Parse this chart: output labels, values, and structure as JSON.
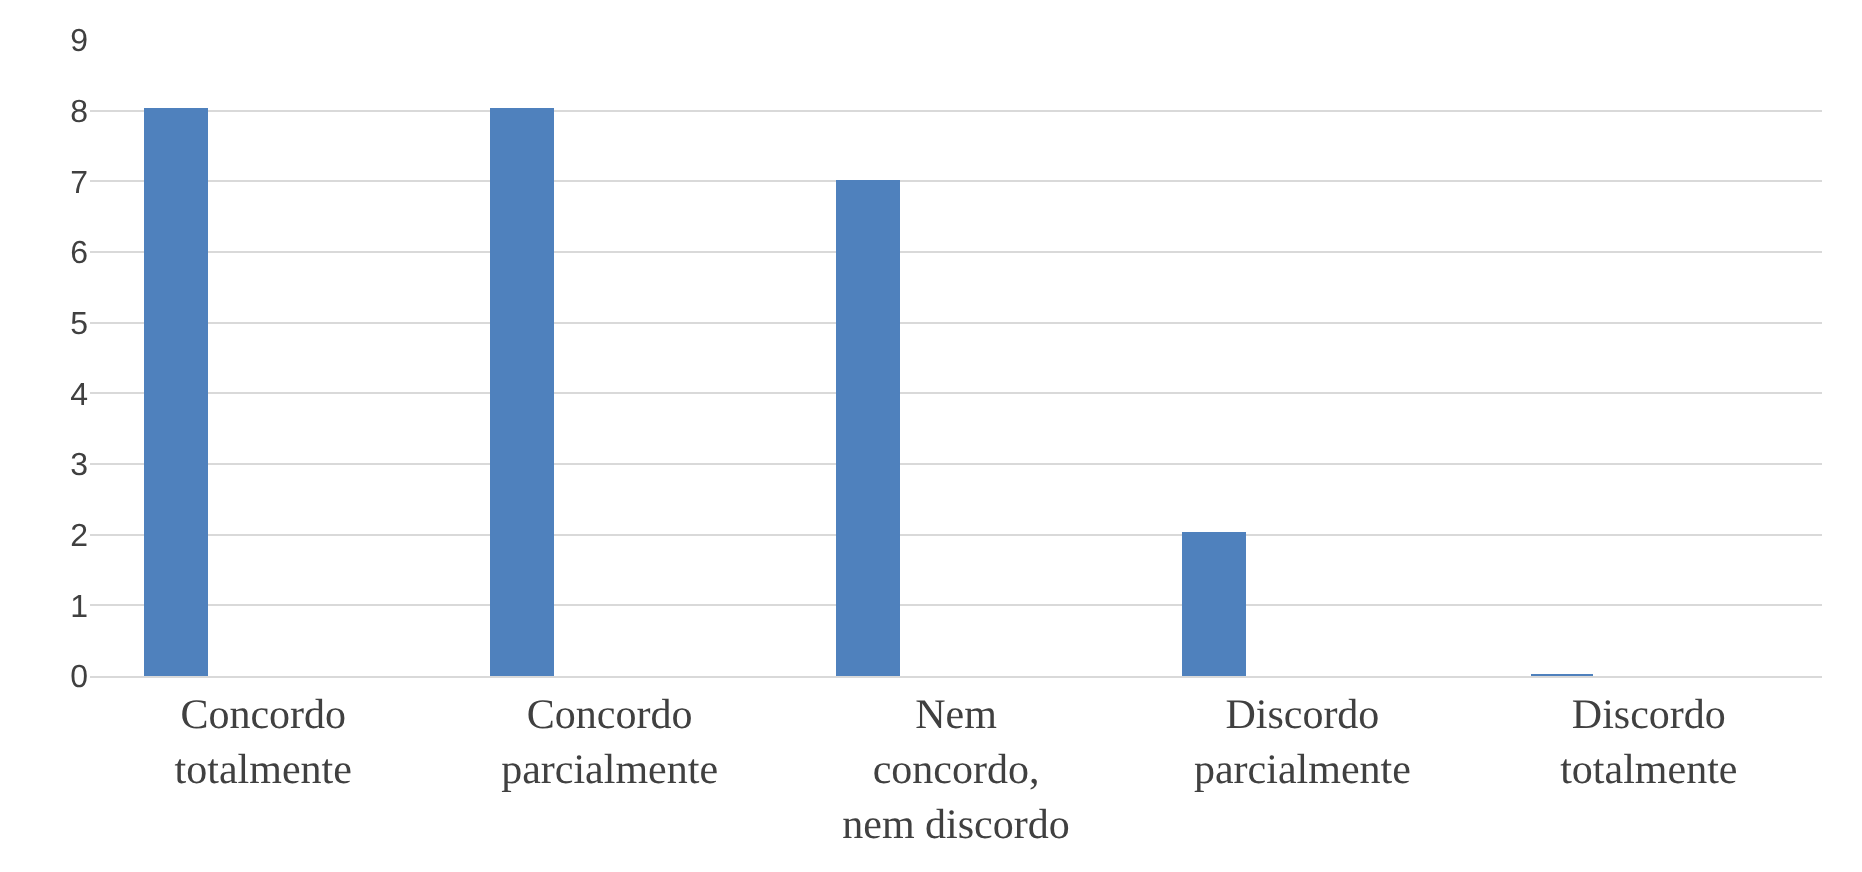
{
  "chart_data": {
    "type": "bar",
    "categories": [
      "Concordo\ntotalmente",
      "Concordo\nparcialmente",
      "Nem\nconcordo,\nnem discordo",
      "Discordo\nparcialmente",
      "Discordo\ntotalmente"
    ],
    "values": [
      8,
      8,
      7,
      2,
      0
    ],
    "color": "#4f81bd",
    "ylim": [
      0,
      9
    ],
    "yticks": [
      0,
      1,
      2,
      3,
      4,
      5,
      6,
      7,
      8,
      9
    ],
    "grid": "y",
    "legend": false
  }
}
